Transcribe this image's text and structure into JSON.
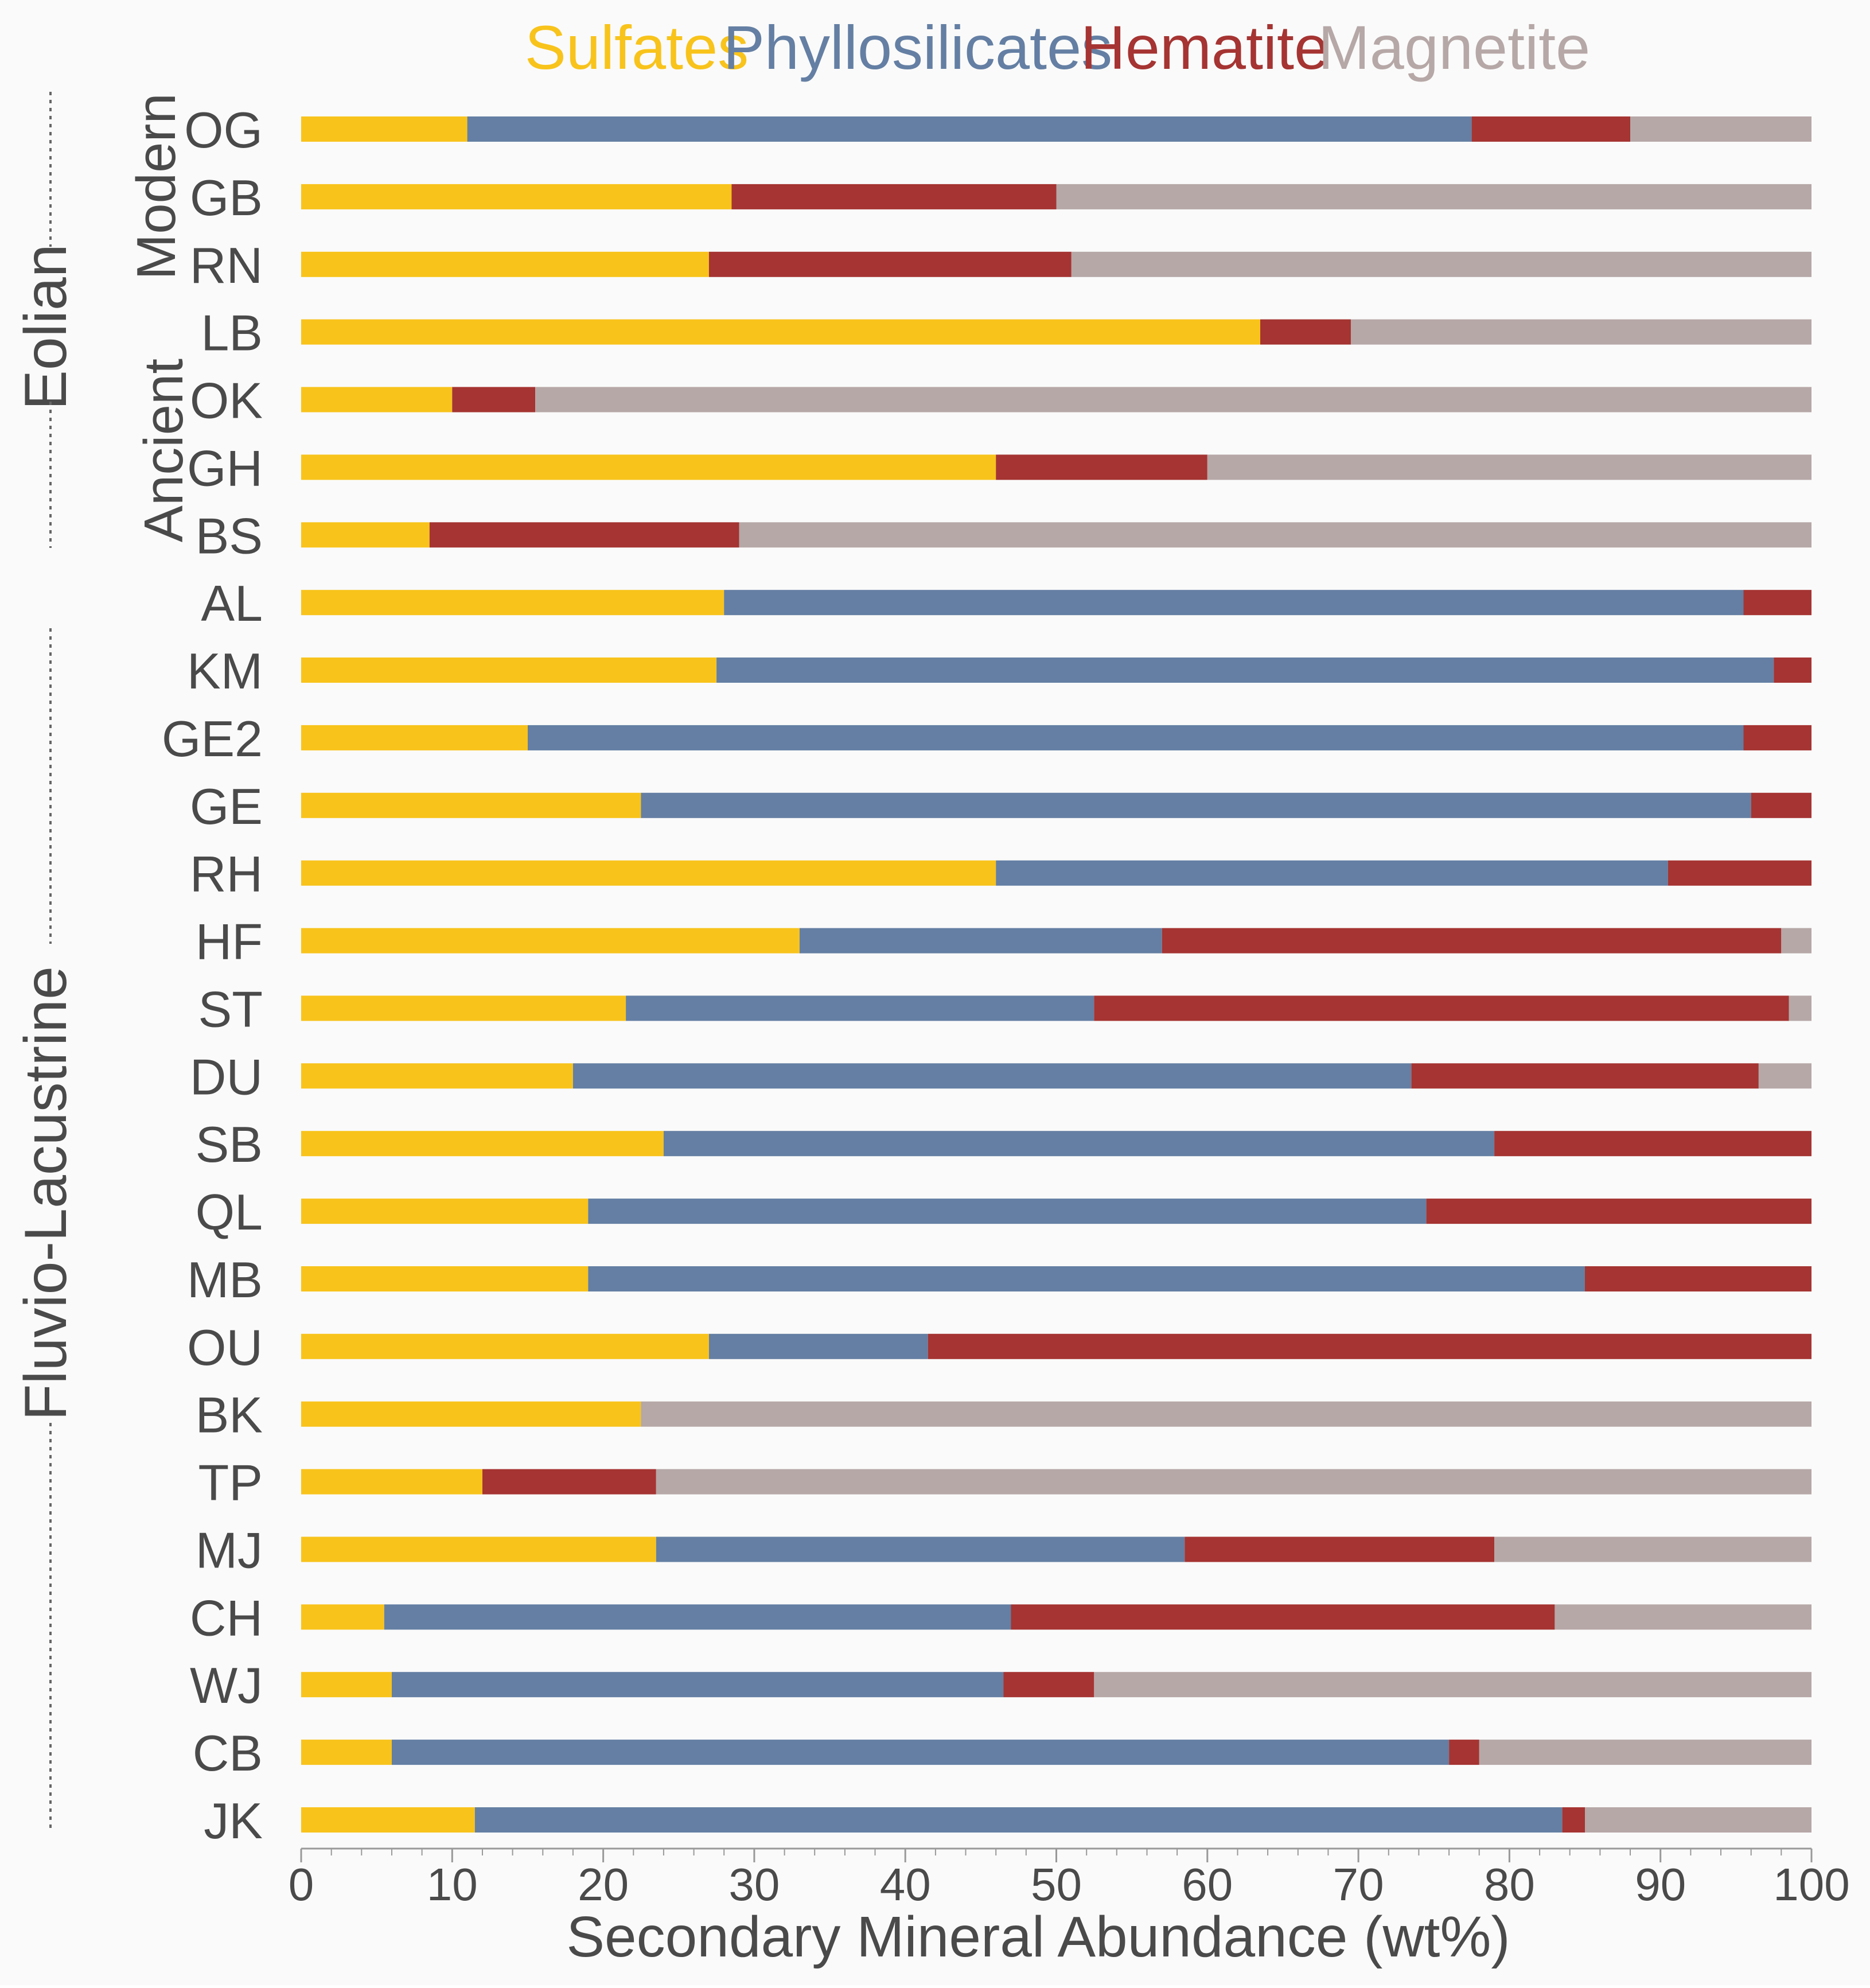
{
  "colors": {
    "sulfates": "#f8c31b",
    "phyllosilicates": "#647fa3",
    "hematite": "#a53432",
    "magnetite": "#b6a8a7",
    "text": "#4a4a4a",
    "background": "#fafafa",
    "divider": "#666666"
  },
  "chart_data": {
    "type": "bar",
    "orientation": "horizontal",
    "stacked": true,
    "xlabel": "Secondary Mineral Abundance (wt%)",
    "xlim": [
      0,
      100
    ],
    "xticks": [
      0,
      10,
      20,
      30,
      40,
      50,
      60,
      70,
      80,
      90,
      100
    ],
    "legend_position": "top",
    "grid": false,
    "categories": [
      "OG",
      "GB",
      "RN",
      "LB",
      "OK",
      "GH",
      "BS",
      "AL",
      "KM",
      "GE2",
      "GE",
      "RH",
      "HF",
      "ST",
      "DU",
      "SB",
      "QL",
      "MB",
      "OU",
      "BK",
      "TP",
      "MJ",
      "CH",
      "WJ",
      "CB",
      "JK"
    ],
    "series": [
      {
        "name": "Sulfates",
        "color": "#f8c31b",
        "values": [
          11.0,
          28.5,
          27.0,
          63.5,
          10.0,
          46.0,
          8.5,
          28.0,
          27.5,
          15.0,
          22.5,
          46.0,
          33.0,
          21.5,
          18.0,
          24.0,
          19.0,
          19.0,
          27.0,
          22.5,
          12.0,
          23.5,
          5.5,
          6.0,
          6.0,
          11.5
        ]
      },
      {
        "name": "Phyllosilicates",
        "color": "#647fa3",
        "values": [
          66.5,
          0,
          0,
          0,
          0,
          0,
          0,
          67.5,
          70.0,
          80.5,
          73.5,
          44.5,
          24.0,
          31.0,
          55.5,
          55.0,
          55.5,
          66.0,
          14.5,
          0,
          0,
          35.0,
          41.5,
          40.5,
          70.0,
          72.0
        ]
      },
      {
        "name": "Hematite",
        "color": "#a53432",
        "values": [
          10.5,
          21.5,
          24.0,
          6.0,
          5.5,
          14.0,
          20.5,
          4.5,
          2.5,
          4.5,
          4.0,
          9.5,
          41.0,
          46.0,
          23.0,
          21.0,
          25.5,
          15.0,
          58.5,
          0,
          11.5,
          20.5,
          36.0,
          6.0,
          2.0,
          1.5
        ]
      },
      {
        "name": "Magnetite",
        "color": "#b6a8a7",
        "values": [
          12.0,
          50.0,
          49.0,
          30.5,
          84.5,
          40.0,
          71.0,
          0,
          0,
          0,
          0,
          0,
          2.0,
          1.5,
          3.5,
          0,
          0,
          0,
          0,
          77.5,
          76.5,
          21.0,
          17.0,
          47.5,
          22.0,
          15.0
        ]
      }
    ],
    "groups": [
      {
        "label": "Eolian",
        "categories": [
          "OG",
          "GB",
          "RN",
          "LB",
          "OK",
          "GH",
          "BS"
        ]
      },
      {
        "label": "Fluvio-Lacustrine",
        "categories": [
          "AL",
          "KM",
          "GE2",
          "GE",
          "RH",
          "HF",
          "ST",
          "DU",
          "SB",
          "QL",
          "MB",
          "OU",
          "BK",
          "TP",
          "MJ",
          "CH",
          "WJ",
          "CB",
          "JK"
        ]
      }
    ],
    "subgroups": [
      {
        "label": "Modern",
        "categories": [
          "OG",
          "GB",
          "RN"
        ]
      },
      {
        "label": "Ancient",
        "categories": [
          "LB",
          "OK",
          "GH",
          "BS"
        ]
      }
    ]
  }
}
